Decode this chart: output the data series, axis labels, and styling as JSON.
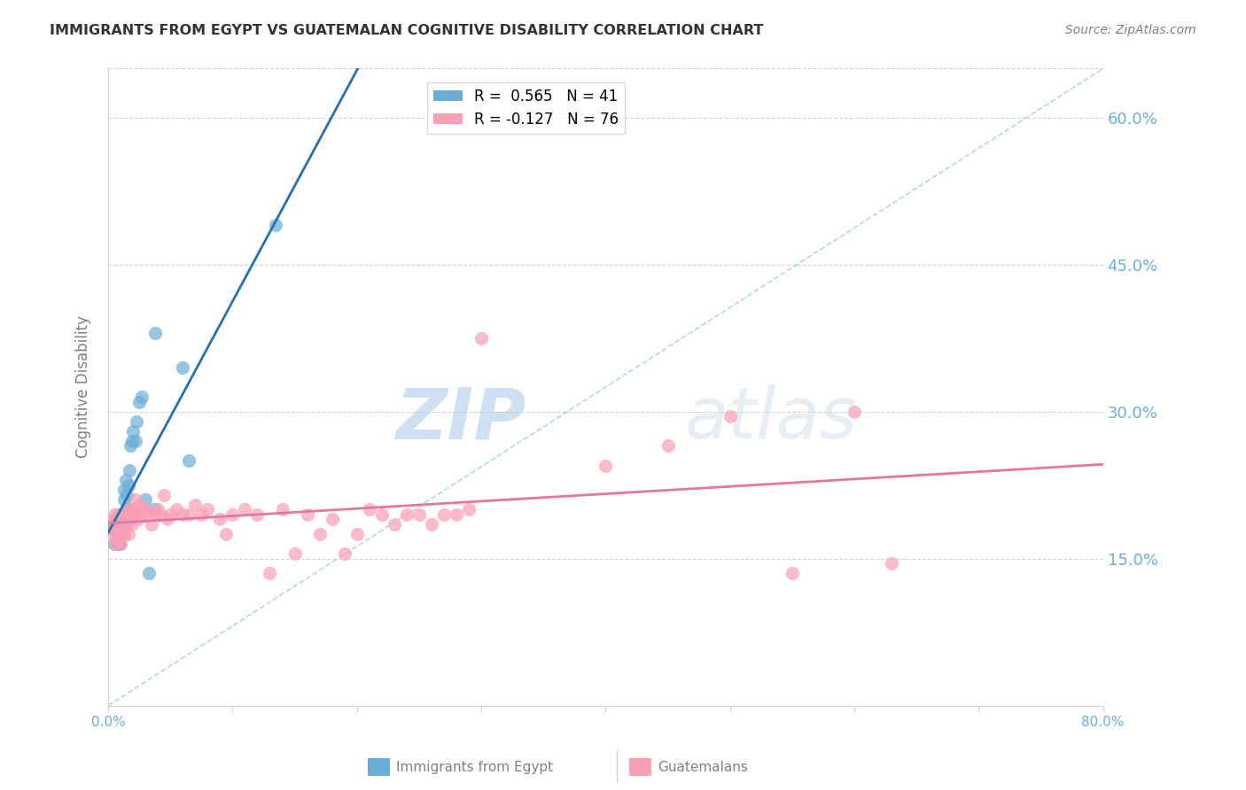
{
  "title": "IMMIGRANTS FROM EGYPT VS GUATEMALAN COGNITIVE DISABILITY CORRELATION CHART",
  "source": "Source: ZipAtlas.com",
  "xlabel": "",
  "ylabel": "Cognitive Disability",
  "xlim": [
    0,
    0.8
  ],
  "ylim": [
    0,
    0.65
  ],
  "yticks": [
    0.15,
    0.3,
    0.45,
    0.6
  ],
  "ytick_labels": [
    "15.0%",
    "30.0%",
    "45.0%",
    "60.0%"
  ],
  "xticks": [
    0.0,
    0.1,
    0.2,
    0.3,
    0.4,
    0.5,
    0.6,
    0.7,
    0.8
  ],
  "legend_label1": "Immigrants from Egypt",
  "legend_label2": "Guatemalans",
  "R1": 0.565,
  "N1": 41,
  "R2": -0.127,
  "N2": 76,
  "color_blue": "#6baed6",
  "color_pink": "#fa9fb5",
  "color_blue_line": "#2171b5",
  "color_pink_line": "#e377a2",
  "color_axis_labels": "#6baed6",
  "watermark_zip": "ZIP",
  "watermark_atlas": "atlas",
  "egypt_x": [
    0.005,
    0.005,
    0.006,
    0.006,
    0.007,
    0.007,
    0.007,
    0.008,
    0.008,
    0.008,
    0.009,
    0.009,
    0.009,
    0.01,
    0.01,
    0.01,
    0.011,
    0.011,
    0.012,
    0.012,
    0.013,
    0.013,
    0.014,
    0.015,
    0.015,
    0.016,
    0.017,
    0.018,
    0.019,
    0.02,
    0.022,
    0.023,
    0.025,
    0.027,
    0.03,
    0.033,
    0.037,
    0.038,
    0.06,
    0.065,
    0.135
  ],
  "egypt_y": [
    0.165,
    0.185,
    0.185,
    0.19,
    0.175,
    0.185,
    0.19,
    0.165,
    0.175,
    0.19,
    0.165,
    0.175,
    0.185,
    0.175,
    0.18,
    0.19,
    0.185,
    0.195,
    0.18,
    0.195,
    0.21,
    0.22,
    0.23,
    0.2,
    0.215,
    0.225,
    0.24,
    0.265,
    0.27,
    0.28,
    0.27,
    0.29,
    0.31,
    0.315,
    0.21,
    0.135,
    0.2,
    0.38,
    0.345,
    0.25,
    0.49
  ],
  "guatemalan_x": [
    0.003,
    0.004,
    0.005,
    0.005,
    0.006,
    0.006,
    0.007,
    0.007,
    0.008,
    0.008,
    0.009,
    0.009,
    0.01,
    0.01,
    0.011,
    0.012,
    0.013,
    0.014,
    0.015,
    0.016,
    0.017,
    0.018,
    0.019,
    0.02,
    0.021,
    0.022,
    0.023,
    0.024,
    0.025,
    0.026,
    0.027,
    0.028,
    0.03,
    0.032,
    0.035,
    0.038,
    0.04,
    0.042,
    0.045,
    0.048,
    0.05,
    0.055,
    0.06,
    0.065,
    0.07,
    0.075,
    0.08,
    0.09,
    0.095,
    0.1,
    0.11,
    0.12,
    0.13,
    0.14,
    0.15,
    0.16,
    0.17,
    0.18,
    0.19,
    0.2,
    0.21,
    0.22,
    0.23,
    0.24,
    0.25,
    0.26,
    0.27,
    0.28,
    0.29,
    0.3,
    0.4,
    0.45,
    0.5,
    0.55,
    0.6,
    0.63
  ],
  "guatemalan_y": [
    0.185,
    0.175,
    0.18,
    0.195,
    0.165,
    0.19,
    0.175,
    0.185,
    0.17,
    0.195,
    0.175,
    0.185,
    0.165,
    0.18,
    0.19,
    0.18,
    0.175,
    0.195,
    0.185,
    0.175,
    0.2,
    0.195,
    0.185,
    0.2,
    0.195,
    0.21,
    0.195,
    0.19,
    0.205,
    0.2,
    0.195,
    0.2,
    0.2,
    0.195,
    0.185,
    0.195,
    0.2,
    0.195,
    0.215,
    0.19,
    0.195,
    0.2,
    0.195,
    0.195,
    0.205,
    0.195,
    0.2,
    0.19,
    0.175,
    0.195,
    0.2,
    0.195,
    0.135,
    0.2,
    0.155,
    0.195,
    0.175,
    0.19,
    0.155,
    0.175,
    0.2,
    0.195,
    0.185,
    0.195,
    0.195,
    0.185,
    0.195,
    0.195,
    0.2,
    0.375,
    0.245,
    0.265,
    0.295,
    0.135,
    0.3,
    0.145
  ]
}
